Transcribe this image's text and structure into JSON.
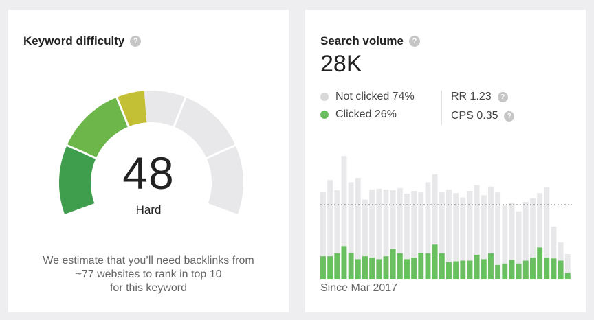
{
  "keyword_difficulty": {
    "title": "Keyword difficulty",
    "help_icon": "question-circle-icon",
    "score": "48",
    "score_value": 48,
    "level": "Hard",
    "description_lines": [
      "We estimate that you’ll need backlinks from",
      "~77 websites to rank in top 10",
      "for this keyword"
    ],
    "colors": {
      "segment_1": "#3f9e4e",
      "segment_2": "#6cb64a",
      "segment_3": "#c4c036",
      "track": "#e8e8ea"
    }
  },
  "search_volume": {
    "title": "Search volume",
    "help_icon": "question-circle-icon",
    "value": "28K",
    "legend": [
      {
        "label": "Not clicked 74%",
        "color": "#d9d9d9"
      },
      {
        "label": "Clicked 26%",
        "color": "#6abf60"
      }
    ],
    "rr_label": "RR 1.23",
    "cps_label": "CPS 0.35",
    "since": "Since Mar 2017"
  },
  "chart_data": {
    "type": "bar",
    "stacked": true,
    "grid": false,
    "reference_line": "dotted horizontal average line",
    "series": [
      {
        "name": "Clicked",
        "color": "#6abf60",
        "values": [
          32,
          32,
          36,
          46,
          37,
          28,
          32,
          30,
          28,
          32,
          42,
          36,
          28,
          30,
          36,
          36,
          48,
          36,
          24,
          25,
          26,
          26,
          34,
          28,
          36,
          20,
          22,
          27,
          22,
          26,
          30,
          44,
          30,
          29,
          26,
          9
        ]
      },
      {
        "name": "Not clicked",
        "color": "#e8e8ea",
        "values": [
          88,
          105,
          87,
          124,
          97,
          112,
          78,
          94,
          97,
          92,
          81,
          90,
          90,
          92,
          84,
          98,
          97,
          84,
          100,
          94,
          87,
          96,
          96,
          88,
          92,
          100,
          80,
          79,
          72,
          81,
          82,
          75,
          97,
          44,
          25,
          26
        ]
      }
    ],
    "average": 103
  }
}
